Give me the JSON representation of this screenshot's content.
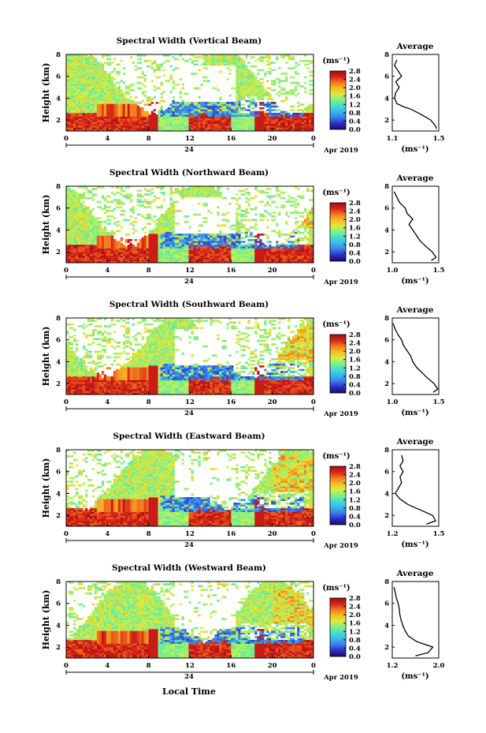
{
  "page": {
    "bottom_label": "Local Time"
  },
  "colorscale": {
    "stops": [
      "#1a0a6a",
      "#2a2cc8",
      "#3c7be6",
      "#35b7f0",
      "#44dccd",
      "#7df08a",
      "#d8ee3e",
      "#f7bd26",
      "#f07a1d",
      "#d8241b",
      "#9e0d12"
    ]
  },
  "common": {
    "ylabel": "Height (km)",
    "yticks": [
      "2",
      "4",
      "6",
      "8"
    ],
    "xticks": [
      "0",
      "4",
      "8",
      "12",
      "16",
      "20",
      "0"
    ],
    "day_label": "24",
    "date_label": "Apr 2019",
    "colorbar_unit": "(ms⁻¹)",
    "colorbar_ticks": [
      "0.0",
      "0.4",
      "0.8",
      "1.2",
      "1.6",
      "2.0",
      "2.4",
      "2.8"
    ],
    "avg_title": "Average",
    "avg_yticks": [
      "2",
      "4",
      "6",
      "8"
    ],
    "avg_unit": "(ms⁻¹)"
  },
  "panels": [
    {
      "title": "Spectral Width (Vertical Beam)",
      "colorbar_ticks": [
        "0.0",
        "0.4",
        "0.8",
        "1.2",
        "1.6",
        "2.0",
        "2.4",
        "2.8"
      ],
      "avg_xticks": [
        "1.1",
        "1.5"
      ]
    },
    {
      "title": "Spectral Width (Northward Beam)",
      "colorbar_ticks": [
        "0.0",
        "0.4",
        "0.8",
        "1.2",
        "1.6",
        "2.0",
        "2.4",
        "2.8"
      ],
      "avg_xticks": [
        "1.0",
        "1.5"
      ]
    },
    {
      "title": "Spectral Width (Southward Beam)",
      "colorbar_ticks": [
        "0.0",
        "0.4",
        "0.8",
        "1.2",
        "1.6",
        "2.0",
        "2.4",
        "2.8"
      ],
      "avg_xticks": [
        "1.0",
        "1.5"
      ]
    },
    {
      "title": "Spectral Width (Eastward Beam)",
      "colorbar_ticks": [
        "0.0",
        "0.4",
        "0.8",
        "1.2",
        "1.6",
        "2.0",
        "2.4",
        "2.8"
      ],
      "avg_xticks": [
        "1.2",
        "1.5"
      ]
    },
    {
      "title": "Spectral Width (Westward Beam)",
      "colorbar_ticks": [
        "0.0",
        "0.4",
        "0.8",
        "1.2",
        "1.6",
        "2.0",
        "2.4",
        "2.8"
      ],
      "avg_xticks": [
        "1.2",
        "2.0"
      ]
    }
  ],
  "chart_data": [
    {
      "type": "heatmap",
      "title": "Spectral Width (Vertical Beam)",
      "xlabel": "",
      "ylabel": "Height (km)",
      "xlim": [
        0,
        24
      ],
      "ylim": [
        1,
        8
      ],
      "colorbar": {
        "label": "(ms⁻¹)",
        "range": [
          0.0,
          2.8
        ]
      },
      "average_profile": {
        "title": "Average",
        "xlim": [
          1.1,
          1.5
        ],
        "heights": [
          1.2,
          1.5,
          2.0,
          2.5,
          3.0,
          3.2,
          3.5,
          4.0,
          4.5,
          5.0,
          5.5,
          6.0,
          6.5,
          7.0,
          7.5
        ],
        "values": [
          1.48,
          1.47,
          1.43,
          1.35,
          1.26,
          1.2,
          1.14,
          1.12,
          1.13,
          1.16,
          1.13,
          1.18,
          1.15,
          1.12,
          1.14
        ]
      }
    },
    {
      "type": "heatmap",
      "title": "Spectral Width (Northward Beam)",
      "xlabel": "",
      "ylabel": "Height (km)",
      "xlim": [
        0,
        24
      ],
      "ylim": [
        1,
        8
      ],
      "colorbar": {
        "label": "(ms⁻¹)",
        "range": [
          0.0,
          2.8
        ]
      },
      "average_profile": {
        "title": "Average",
        "xlim": [
          1.0,
          1.5
        ],
        "heights": [
          1.2,
          1.5,
          2.0,
          2.5,
          3.0,
          3.5,
          4.0,
          4.5,
          5.0,
          5.5,
          6.0,
          6.5,
          7.0,
          7.5
        ],
        "values": [
          1.42,
          1.47,
          1.43,
          1.36,
          1.3,
          1.26,
          1.22,
          1.18,
          1.22,
          1.16,
          1.14,
          1.08,
          1.05,
          1.02
        ]
      }
    },
    {
      "type": "heatmap",
      "title": "Spectral Width (Southward Beam)",
      "xlabel": "",
      "ylabel": "Height (km)",
      "xlim": [
        0,
        24
      ],
      "ylim": [
        1,
        8
      ],
      "colorbar": {
        "label": "(ms⁻¹)",
        "range": [
          0.0,
          2.8
        ]
      },
      "average_profile": {
        "title": "Average",
        "xlim": [
          1.0,
          1.5
        ],
        "heights": [
          1.2,
          1.5,
          2.0,
          2.5,
          3.0,
          3.5,
          4.0,
          4.5,
          5.0,
          5.5,
          6.0,
          6.5,
          7.0,
          7.5
        ],
        "values": [
          1.44,
          1.49,
          1.45,
          1.38,
          1.32,
          1.26,
          1.22,
          1.2,
          1.16,
          1.12,
          1.1,
          1.06,
          1.03,
          1.01
        ]
      }
    },
    {
      "type": "heatmap",
      "title": "Spectral Width (Eastward Beam)",
      "xlabel": "",
      "ylabel": "Height (km)",
      "xlim": [
        0,
        24
      ],
      "ylim": [
        1,
        8
      ],
      "colorbar": {
        "label": "(ms⁻¹)",
        "range": [
          0.0,
          2.8
        ]
      },
      "average_profile": {
        "title": "Average",
        "xlim": [
          1.2,
          1.5
        ],
        "heights": [
          1.2,
          1.5,
          2.0,
          2.5,
          3.0,
          3.5,
          4.0,
          4.5,
          5.0,
          5.5,
          6.0,
          6.5,
          7.0,
          7.5
        ],
        "values": [
          1.42,
          1.48,
          1.46,
          1.38,
          1.3,
          1.25,
          1.22,
          1.24,
          1.26,
          1.25,
          1.27,
          1.25,
          1.27,
          1.26
        ]
      }
    },
    {
      "type": "heatmap",
      "title": "Spectral Width (Westward Beam)",
      "xlabel": "Local Time",
      "ylabel": "Height (km)",
      "xlim": [
        0,
        24
      ],
      "ylim": [
        1,
        8
      ],
      "colorbar": {
        "label": "(ms⁻¹)",
        "range": [
          0.0,
          2.8
        ]
      },
      "average_profile": {
        "title": "Average",
        "xlim": [
          1.2,
          2.0
        ],
        "heights": [
          1.2,
          1.5,
          2.0,
          2.5,
          3.0,
          3.5,
          4.0,
          4.5,
          5.0,
          5.5,
          6.0,
          6.5,
          7.0,
          7.5
        ],
        "values": [
          1.6,
          1.82,
          1.9,
          1.62,
          1.48,
          1.42,
          1.38,
          1.35,
          1.33,
          1.32,
          1.3,
          1.27,
          1.25,
          1.23
        ]
      }
    }
  ]
}
